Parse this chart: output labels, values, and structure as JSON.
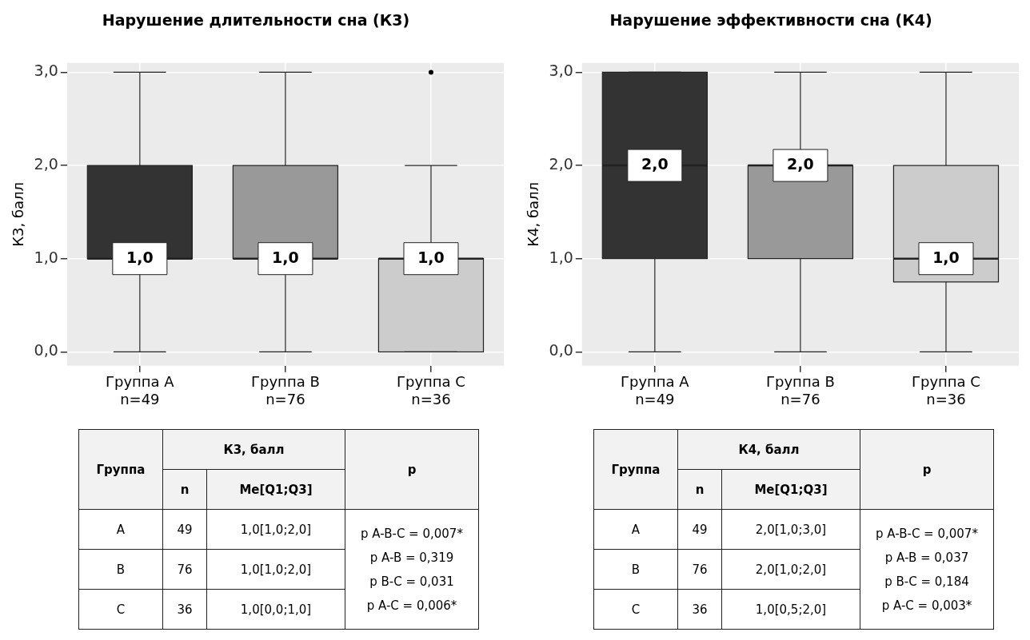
{
  "chart_data": [
    {
      "type": "box",
      "title": "Нарушение длительности сна (К3)",
      "ylabel": "К3, балл",
      "categories": [
        "Группа A\nn=49",
        "Группа B\nn=76",
        "Группа C\nn=36"
      ],
      "colors": [
        "#333333",
        "#999999",
        "#cccccc"
      ],
      "boxes": [
        {
          "low": 0,
          "q1": 1,
          "median": 1,
          "q3": 2,
          "high": 3
        },
        {
          "low": 0,
          "q1": 1,
          "median": 1,
          "q3": 2,
          "high": 3
        },
        {
          "low": 0,
          "q1": 0,
          "median": 1,
          "q3": 1,
          "high": 2,
          "outliers": [
            3
          ]
        }
      ],
      "value_labels": [
        "1,0",
        "1,0",
        "1,0"
      ],
      "ylim": [
        -0.15,
        3.1
      ],
      "yticks": [
        {
          "value": 0,
          "label": "0,0"
        },
        {
          "value": 1,
          "label": "1,0"
        },
        {
          "value": 2,
          "label": "2,0"
        },
        {
          "value": 3,
          "label": "3,0"
        }
      ],
      "grid": true
    },
    {
      "type": "box",
      "title": "Нарушение эффективности сна (К4)",
      "ylabel": "К4, балл",
      "categories": [
        "Группа A\nn=49",
        "Группа B\nn=76",
        "Группа C\nn=36"
      ],
      "colors": [
        "#333333",
        "#999999",
        "#cccccc"
      ],
      "boxes": [
        {
          "low": 0,
          "q1": 1,
          "median": 2,
          "q3": 3,
          "high": 3
        },
        {
          "low": 0,
          "q1": 1,
          "median": 2,
          "q3": 2,
          "high": 3
        },
        {
          "low": 0,
          "q1": 0.75,
          "median": 1,
          "q3": 2,
          "high": 3
        }
      ],
      "value_labels": [
        "2,0",
        "2,0",
        "1,0"
      ],
      "ylim": [
        -0.15,
        3.1
      ],
      "yticks": [
        {
          "value": 0,
          "label": "0,0"
        },
        {
          "value": 1,
          "label": "1,0"
        },
        {
          "value": 2,
          "label": "2,0"
        },
        {
          "value": 3,
          "label": "3,0"
        }
      ],
      "grid": true
    },
    {
      "type": "other",
      "annotations": [
        "Группа",
        "К3, балл",
        "p",
        "n",
        "Me[Q1;Q3]",
        "A",
        "49",
        "1,0[1,0;2,0]",
        "B",
        "76",
        "1,0[1,0;2,0]",
        "C",
        "36",
        "1,0[0,0;1,0]",
        "p A-B-C = 0,007*",
        "p A-B = 0,319",
        "p B-C = 0,031",
        "p A-C = 0,006*"
      ]
    },
    {
      "type": "other",
      "annotations": [
        "Группа",
        "К4, балл",
        "p",
        "n",
        "Me[Q1;Q3]",
        "A",
        "49",
        "2,0[1,0;3,0]",
        "B",
        "76",
        "2,0[1,0;2,0]",
        "C",
        "36",
        "1,0[0,5;2,0]",
        "p A-B-C = 0,007*",
        "p A-B = 0,037",
        "p B-C = 0,184",
        "p A-C = 0,003*"
      ]
    }
  ]
}
